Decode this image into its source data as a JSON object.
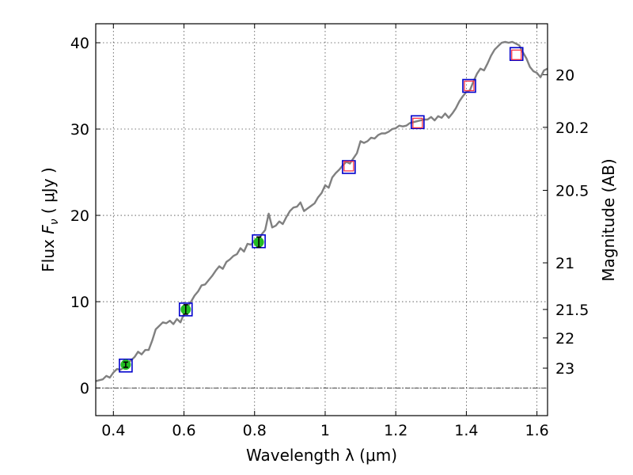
{
  "chart_data": {
    "type": "line",
    "xlabel": "Wavelength  λ (μm)",
    "ylabel": "Flux  F_ν  ( μJy )",
    "y2label": "Magnitude (AB)",
    "xlim": [
      0.35,
      1.63
    ],
    "ylim": [
      -3.2,
      42.2
    ],
    "x_ticks": [
      0.4,
      0.6,
      0.8,
      1.0,
      1.2,
      1.4,
      1.6
    ],
    "x_tick_labels": [
      "0.4",
      "0.6",
      "0.8",
      "1",
      "1.2",
      "1.4",
      "1.6"
    ],
    "y_ticks": [
      0,
      10,
      20,
      30,
      40
    ],
    "y_tick_labels": [
      "0",
      "10",
      "20",
      "30",
      "40"
    ],
    "y2_ticks": [
      {
        "label": "20",
        "flux": 36.3
      },
      {
        "label": "20.2",
        "flux": 30.2
      },
      {
        "label": "20.5",
        "flux": 22.9
      },
      {
        "label": "21",
        "flux": 14.5
      },
      {
        "label": "21.5",
        "flux": 9.1
      },
      {
        "label": "22",
        "flux": 5.8
      },
      {
        "label": "23",
        "flux": 2.3
      }
    ],
    "grid": true,
    "colors": {
      "spectrum": "#808080",
      "observed_marker": "#22bb22",
      "model_square": "#0000cc",
      "template_square": "#ff3344"
    },
    "series": [
      {
        "name": "spectrum",
        "style": "line",
        "x": [
          0.35,
          0.37,
          0.38,
          0.39,
          0.4,
          0.41,
          0.42,
          0.43,
          0.44,
          0.45,
          0.46,
          0.47,
          0.48,
          0.49,
          0.5,
          0.51,
          0.52,
          0.53,
          0.54,
          0.55,
          0.56,
          0.57,
          0.58,
          0.59,
          0.6,
          0.61,
          0.62,
          0.63,
          0.64,
          0.65,
          0.66,
          0.67,
          0.68,
          0.69,
          0.7,
          0.71,
          0.72,
          0.73,
          0.74,
          0.75,
          0.76,
          0.77,
          0.78,
          0.79,
          0.8,
          0.81,
          0.82,
          0.83,
          0.84,
          0.85,
          0.86,
          0.87,
          0.88,
          0.89,
          0.9,
          0.91,
          0.92,
          0.93,
          0.94,
          0.95,
          0.96,
          0.97,
          0.98,
          0.99,
          1.0,
          1.01,
          1.02,
          1.03,
          1.04,
          1.05,
          1.06,
          1.07,
          1.08,
          1.09,
          1.1,
          1.11,
          1.12,
          1.13,
          1.14,
          1.15,
          1.16,
          1.17,
          1.18,
          1.19,
          1.2,
          1.21,
          1.22,
          1.23,
          1.24,
          1.25,
          1.26,
          1.27,
          1.28,
          1.29,
          1.3,
          1.31,
          1.32,
          1.33,
          1.34,
          1.35,
          1.36,
          1.37,
          1.38,
          1.39,
          1.4,
          1.41,
          1.42,
          1.43,
          1.44,
          1.45,
          1.46,
          1.47,
          1.48,
          1.49,
          1.5,
          1.51,
          1.52,
          1.53,
          1.54,
          1.55,
          1.56,
          1.57,
          1.58,
          1.59,
          1.6,
          1.61,
          1.62,
          1.63
        ],
        "y": [
          0.8,
          1.0,
          1.4,
          1.2,
          1.8,
          2.2,
          2.1,
          2.4,
          2.9,
          3.2,
          3.6,
          4.2,
          3.9,
          4.4,
          4.4,
          5.5,
          6.8,
          7.2,
          7.6,
          7.5,
          7.8,
          7.4,
          8.0,
          7.6,
          8.6,
          9.4,
          10.0,
          10.7,
          11.2,
          11.9,
          12.0,
          12.5,
          13.0,
          13.6,
          14.1,
          13.8,
          14.6,
          14.9,
          15.3,
          15.5,
          16.2,
          15.8,
          16.7,
          16.6,
          17.1,
          17.0,
          17.8,
          18.3,
          20.2,
          18.6,
          18.8,
          19.3,
          19.0,
          19.8,
          20.5,
          20.9,
          21.0,
          21.5,
          20.5,
          20.8,
          21.1,
          21.4,
          22.1,
          22.6,
          23.5,
          23.2,
          24.4,
          24.9,
          25.3,
          25.8,
          26.2,
          26.0,
          26.6,
          27.2,
          28.6,
          28.4,
          28.6,
          29.0,
          28.9,
          29.3,
          29.5,
          29.5,
          29.7,
          30.0,
          30.1,
          30.4,
          30.3,
          30.4,
          30.7,
          30.8,
          30.9,
          31.0,
          31.1,
          31.1,
          31.4,
          31.0,
          31.5,
          31.3,
          31.8,
          31.3,
          31.8,
          32.4,
          33.2,
          33.8,
          34.3,
          34.5,
          35.5,
          36.4,
          37.0,
          36.8,
          37.6,
          38.5,
          39.2,
          39.6,
          40.0,
          40.1,
          40.0,
          40.1,
          39.9,
          39.7,
          38.9,
          38.2,
          37.2,
          36.7,
          36.5,
          36.0,
          36.8,
          37.0
        ]
      },
      {
        "name": "observed photometry",
        "style": "circle_errorbar",
        "x": [
          0.435,
          0.605,
          0.812
        ],
        "y": [
          2.7,
          9.1,
          16.9
        ],
        "yerr": [
          0.3,
          0.55,
          0.6
        ]
      },
      {
        "name": "model photometry",
        "style": "square_blue",
        "x": [
          0.435,
          0.605,
          0.812,
          1.067,
          1.262,
          1.408,
          1.542
        ],
        "y": [
          2.6,
          9.1,
          17.0,
          25.6,
          30.8,
          35.0,
          38.7
        ]
      },
      {
        "name": "template photometry",
        "style": "square_red",
        "x": [
          1.067,
          1.262,
          1.408,
          1.542
        ],
        "y": [
          25.7,
          30.7,
          35.0,
          38.6
        ]
      }
    ]
  }
}
